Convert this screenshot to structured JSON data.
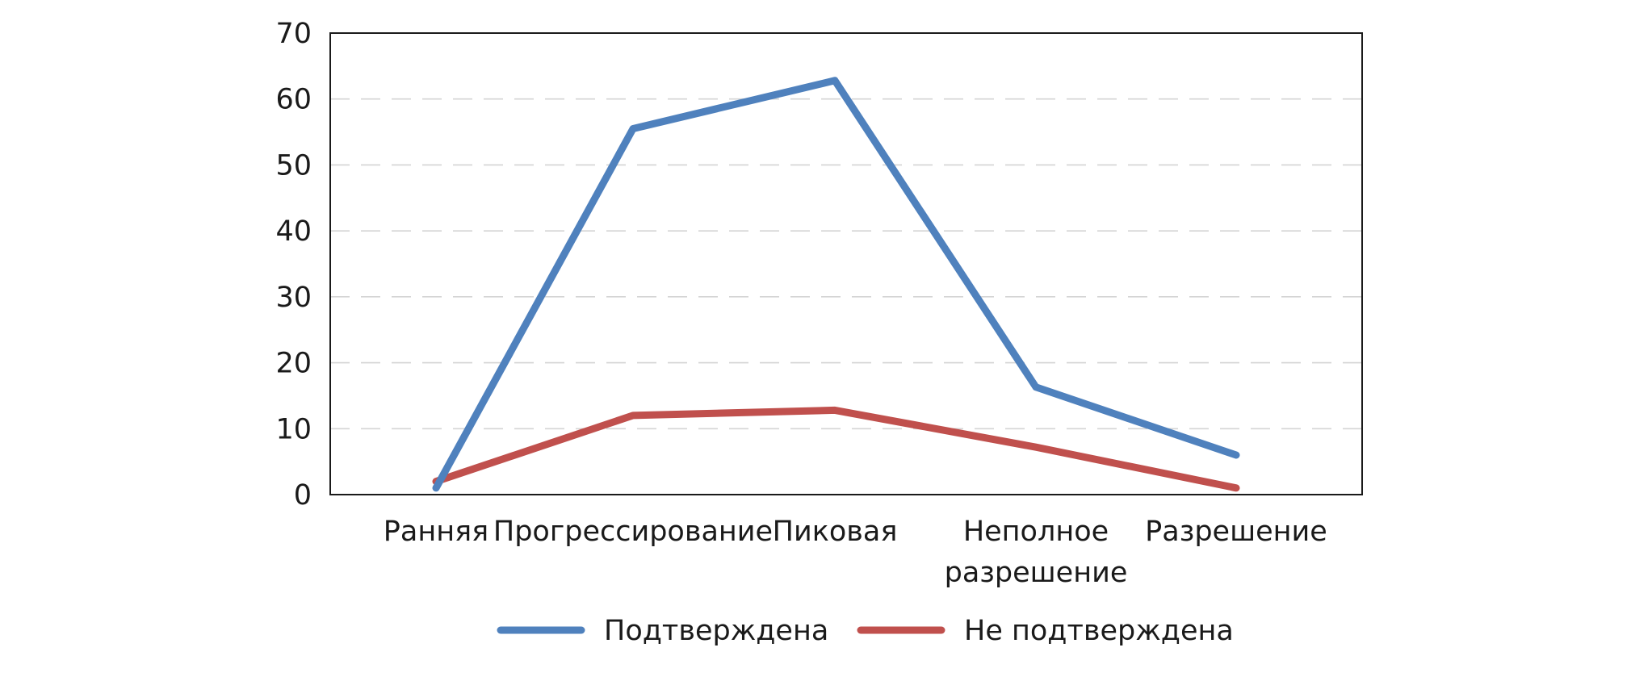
{
  "chart_data": {
    "type": "line",
    "title": "",
    "xlabel": "",
    "ylabel": "",
    "categories": [
      [
        "Ранняя"
      ],
      [
        "Прогрессирование"
      ],
      [
        "Пиковая"
      ],
      [
        "Неполное",
        "разрешение"
      ],
      [
        "Разрешение"
      ]
    ],
    "ylim": [
      0,
      70
    ],
    "yticks": [
      0,
      10,
      20,
      30,
      40,
      50,
      60,
      70
    ],
    "grid": "horizontal dashed",
    "legend_position": "bottom",
    "series": [
      {
        "name": "Подтверждена",
        "color": "#4f81bd",
        "values": [
          1,
          55.5,
          62.8,
          16.3,
          6
        ]
      },
      {
        "name": "Не подтверждена",
        "color": "#c0504d",
        "values": [
          2,
          12,
          12.8,
          7.2,
          1
        ]
      }
    ]
  }
}
